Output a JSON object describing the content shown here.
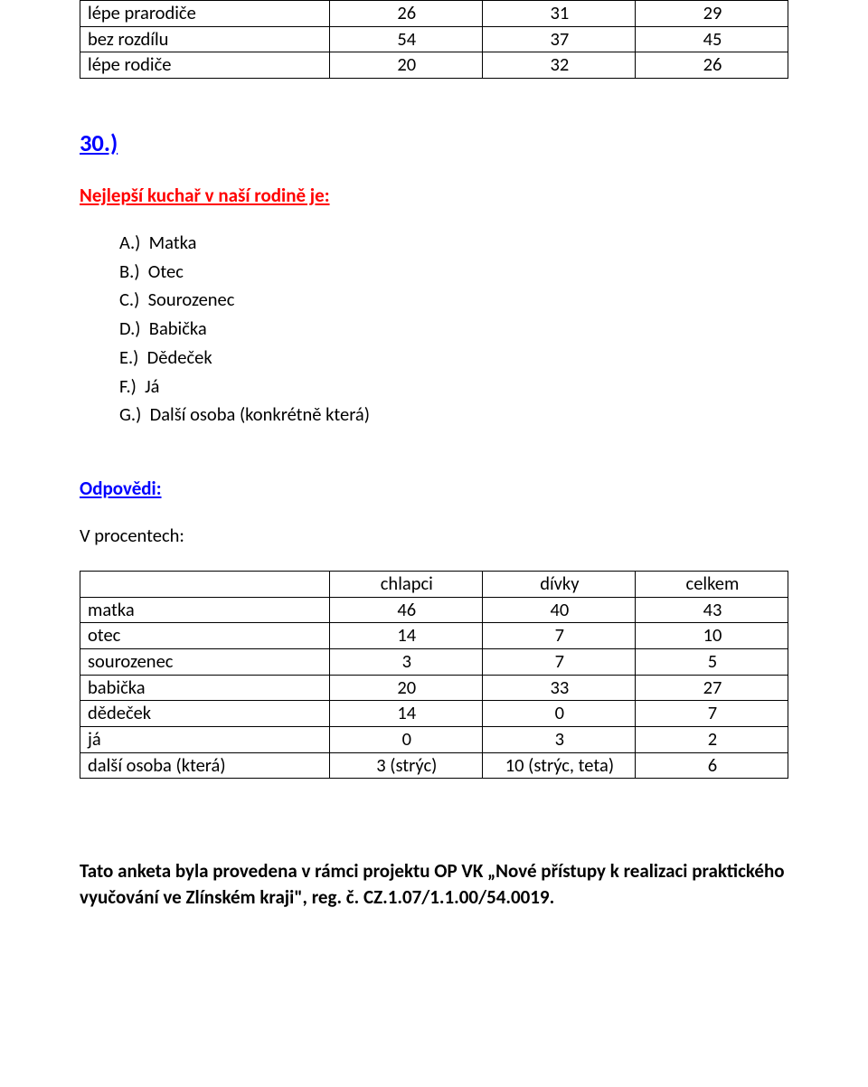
{
  "colors": {
    "table_border": "#000000",
    "text": "#000000",
    "link_blue": "#0000ff",
    "title_red": "#ff0000",
    "background": "#ffffff"
  },
  "typography": {
    "body_fontsize_pt": 15,
    "heading_number_fontsize_pt": 20,
    "font_family": "Calibri"
  },
  "top_table": {
    "type": "table",
    "columns": [
      "",
      "",
      "",
      ""
    ],
    "rows": [
      {
        "label": "lépe prarodiče",
        "c1": "26",
        "c2": "31",
        "c3": "29"
      },
      {
        "label": "bez rozdílu",
        "c1": "54",
        "c2": "37",
        "c3": "45"
      },
      {
        "label": "lépe rodiče",
        "c1": "20",
        "c2": "32",
        "c3": "26"
      }
    ]
  },
  "section": {
    "number": "30.)",
    "title": "Nejlepší kuchař v naší rodině je:",
    "options": [
      "A.)  Matka",
      "B.)  Otec",
      "C.)  Sourozenec",
      "D.)  Babička",
      "E.)  Dědeček",
      "F.)  Já",
      "G.)  Další osoba (konkrétně která)"
    ]
  },
  "answers_heading": "Odpovědi:",
  "percent_label": "V procentech:",
  "results_table": {
    "type": "table",
    "headers": [
      "",
      "chlapci",
      "dívky",
      "celkem"
    ],
    "rows": [
      {
        "label": "matka",
        "c1": "46",
        "c2": "40",
        "c3": "43"
      },
      {
        "label": "otec",
        "c1": "14",
        "c2": "7",
        "c3": "10"
      },
      {
        "label": "sourozenec",
        "c1": "3",
        "c2": "7",
        "c3": "5"
      },
      {
        "label": "babička",
        "c1": "20",
        "c2": "33",
        "c3": "27"
      },
      {
        "label": "dědeček",
        "c1": "14",
        "c2": "0",
        "c3": "7"
      },
      {
        "label": "já",
        "c1": "0",
        "c2": "3",
        "c3": "2"
      },
      {
        "label": "další osoba (která)",
        "c1": "3 (strýc)",
        "c2": "10 (strýc, teta)",
        "c3": "6"
      }
    ]
  },
  "footer": {
    "line1": "Tato anketa byla provedena v rámci projektu OP VK „Nové přístupy k realizaci praktického",
    "line2": "vyučování  ve Zlínském kraji\", reg. č. CZ.1.07/1.1.00/54.0019."
  }
}
